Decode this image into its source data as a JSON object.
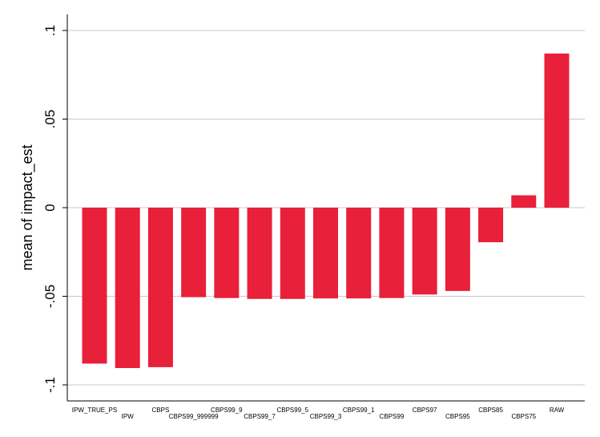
{
  "chart_data": {
    "type": "bar",
    "title": "",
    "xlabel": "",
    "ylabel": "mean of impact_est",
    "ylim": [
      -0.1,
      0.1
    ],
    "yticks": [
      {
        "value": 0.1,
        "label": ".1"
      },
      {
        "value": 0.05,
        "label": ".05"
      },
      {
        "value": 0,
        "label": "0"
      },
      {
        "value": -0.05,
        "label": "-.05"
      },
      {
        "value": -0.1,
        "label": "-.1"
      }
    ],
    "grid": true,
    "categories": [
      "IPW_TRUE_PS",
      "IPW",
      "CBPS",
      "CBPS99_999999",
      "CBPS99_9",
      "CBPS99_7",
      "CBPS99_5",
      "CBPS99_3",
      "CBPS99_1",
      "CBPS99",
      "CBPS97",
      "CBPS95",
      "CBPS85",
      "CBPS75",
      "RAW"
    ],
    "values": [
      -0.088,
      -0.0905,
      -0.09,
      -0.0505,
      -0.051,
      -0.0515,
      -0.0515,
      -0.0512,
      -0.0512,
      -0.051,
      -0.049,
      -0.047,
      -0.0195,
      0.007,
      0.087
    ],
    "colors": {
      "bar": "#e8203a",
      "grid": "#c8c8c8",
      "axis": "#000000"
    }
  }
}
